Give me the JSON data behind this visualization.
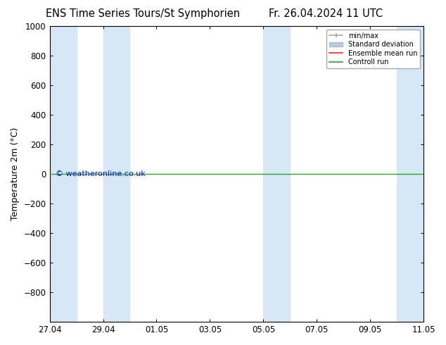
{
  "title_left": "ENS Time Series Tours/St Symphorien",
  "title_right": "Fr. 26.04.2024 11 UTC",
  "ylabel": "Temperature 2m (°C)",
  "ylim": [
    -1000,
    1000
  ],
  "yticks": [
    -800,
    -600,
    -400,
    -200,
    0,
    200,
    400,
    600,
    800,
    1000
  ],
  "x_dates": [
    "27.04",
    "29.04",
    "01.05",
    "03.05",
    "05.05",
    "07.05",
    "09.05",
    "11.05"
  ],
  "x_values": [
    0,
    2,
    4,
    6,
    8,
    10,
    12,
    14
  ],
  "x_lim": [
    0,
    14
  ],
  "shaded_bands": [
    [
      0,
      1
    ],
    [
      2,
      3
    ],
    [
      8,
      9
    ],
    [
      13,
      14
    ]
  ],
  "band_color": "#d6e8f5",
  "line_y": 0,
  "control_run_color": "#22aa22",
  "ensemble_mean_color": "#ff2222",
  "watermark": "© weatheronline.co.uk",
  "watermark_color": "#1111cc",
  "bg_color": "#ffffff",
  "legend_items": [
    "min/max",
    "Standard deviation",
    "Ensemble mean run",
    "Controll run"
  ],
  "legend_colors": [
    "#aaaaaa",
    "#bbccdd",
    "#ff2222",
    "#22aa22"
  ],
  "title_fontsize": 10.5,
  "tick_fontsize": 8.5,
  "label_fontsize": 9
}
